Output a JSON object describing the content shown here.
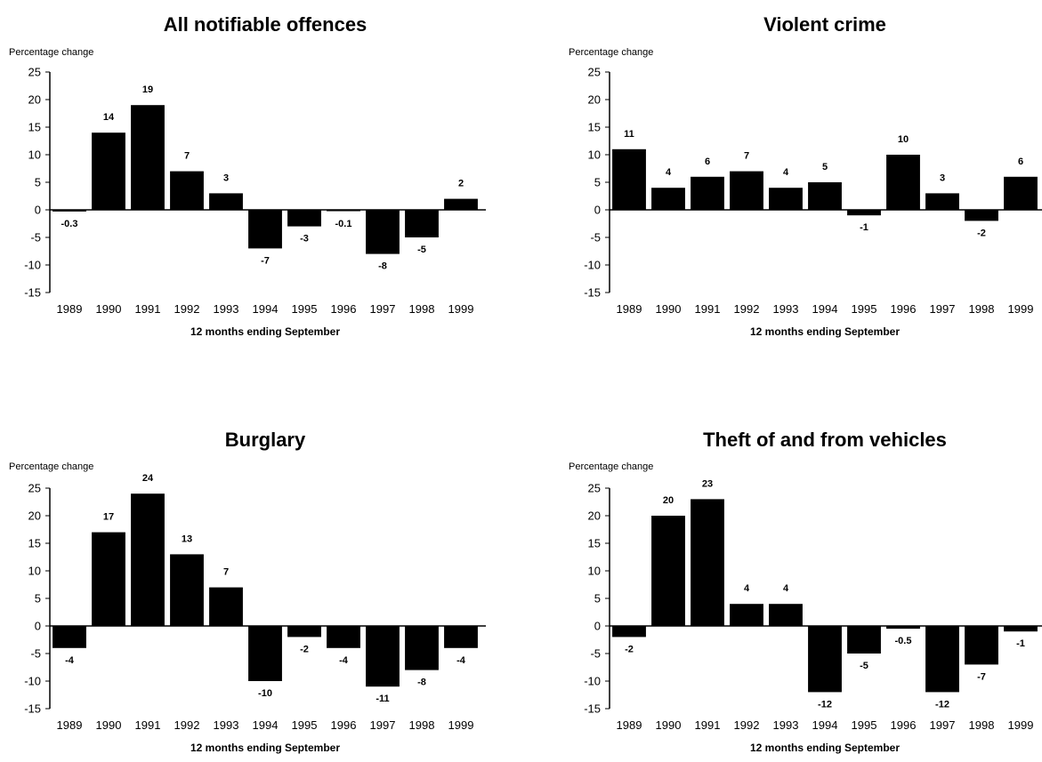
{
  "chart_data": [
    {
      "type": "bar",
      "title": "All notifiable offences",
      "ylabel": "Percentage change",
      "xlabel": "12 months ending September",
      "ylim": [
        -15,
        25
      ],
      "yticks": [
        25,
        20,
        15,
        10,
        5,
        0,
        -5,
        -10,
        -15
      ],
      "categories": [
        "1989",
        "1990",
        "1991",
        "1992",
        "1993",
        "1994",
        "1995",
        "1996",
        "1997",
        "1998",
        "1999"
      ],
      "values": [
        -0.3,
        14,
        19,
        7,
        3,
        -7,
        -3,
        -0.1,
        -8,
        -5,
        2
      ],
      "data_labels": [
        "-0.3",
        "14",
        "19",
        "7",
        "3",
        "-7",
        "-3",
        "-0.1",
        "-8",
        "-5",
        "2"
      ]
    },
    {
      "type": "bar",
      "title": "Violent crime",
      "ylabel": "Percentage change",
      "xlabel": "12 months ending September",
      "ylim": [
        -15,
        25
      ],
      "yticks": [
        25,
        20,
        15,
        10,
        5,
        0,
        -5,
        -10,
        -15
      ],
      "categories": [
        "1989",
        "1990",
        "1991",
        "1992",
        "1993",
        "1994",
        "1995",
        "1996",
        "1997",
        "1998",
        "1999"
      ],
      "values": [
        11,
        4,
        6,
        7,
        4,
        5,
        -1,
        10,
        3,
        -2,
        6
      ],
      "data_labels": [
        "11",
        "4",
        "6",
        "7",
        "4",
        "5",
        "-1",
        "10",
        "3",
        "-2",
        "6"
      ]
    },
    {
      "type": "bar",
      "title": "Burglary",
      "ylabel": "Percentage change",
      "xlabel": "12 months ending September",
      "ylim": [
        -15,
        25
      ],
      "yticks": [
        25,
        20,
        15,
        10,
        5,
        0,
        -5,
        -10,
        -15
      ],
      "categories": [
        "1989",
        "1990",
        "1991",
        "1992",
        "1993",
        "1994",
        "1995",
        "1996",
        "1997",
        "1998",
        "1999"
      ],
      "values": [
        -4,
        17,
        24,
        13,
        7,
        -10,
        -2,
        -4,
        -11,
        -8,
        -4
      ],
      "data_labels": [
        "-4",
        "17",
        "24",
        "13",
        "7",
        "-10",
        "-2",
        "-4",
        "-11",
        "-8",
        "-4"
      ]
    },
    {
      "type": "bar",
      "title": "Theft of and from vehicles",
      "ylabel": "Percentage change",
      "xlabel": "12 months ending September",
      "ylim": [
        -15,
        25
      ],
      "yticks": [
        25,
        20,
        15,
        10,
        5,
        0,
        -5,
        -10,
        -15
      ],
      "categories": [
        "1989",
        "1990",
        "1991",
        "1992",
        "1993",
        "1994",
        "1995",
        "1996",
        "1997",
        "1998",
        "1999"
      ],
      "values": [
        -2,
        20,
        23,
        4,
        4,
        -12,
        -5,
        -0.5,
        -12,
        -7,
        -1
      ],
      "data_labels": [
        "-2",
        "20",
        "23",
        "4",
        "4",
        "-12",
        "-5",
        "-0.5",
        "-12",
        "-7",
        "-1"
      ]
    }
  ]
}
